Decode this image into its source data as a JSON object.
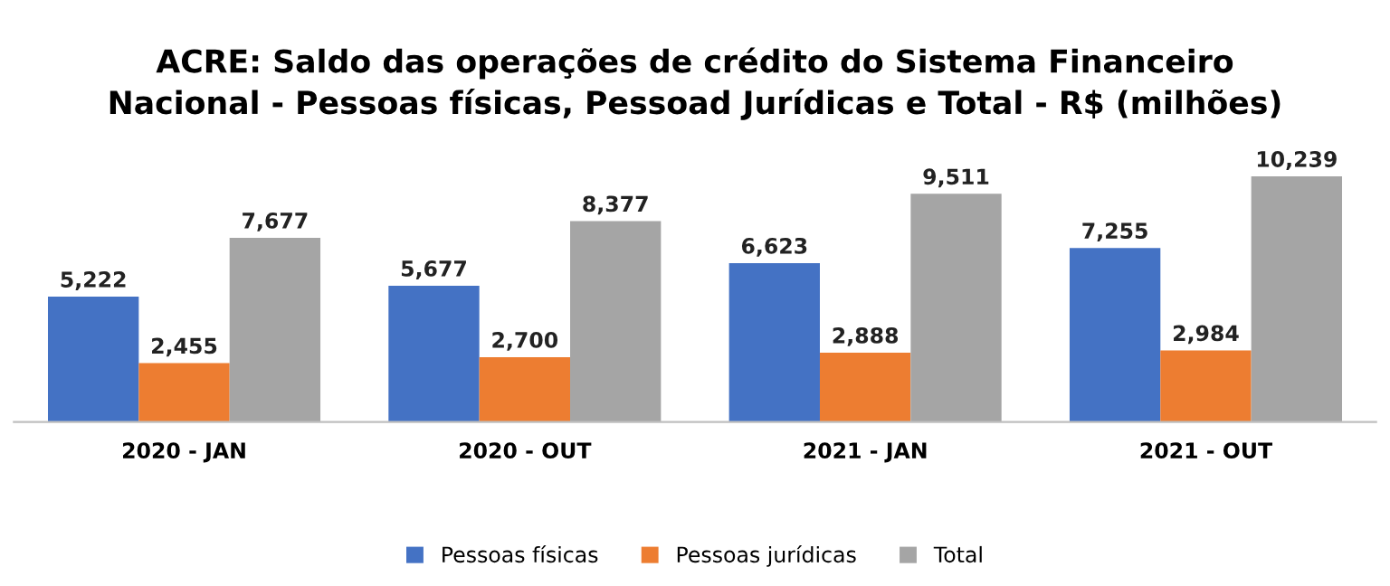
{
  "chart_data": {
    "type": "bar",
    "title": "ACRE: Saldo das operações de crédito do Sistema Financeiro\nNacional - Pessoas físicas, Pessoad Jurídicas e Total - R$ (milhões)",
    "categories": [
      "2020 - JAN",
      "2020 - OUT",
      "2021 - JAN",
      "2021 - OUT"
    ],
    "series": [
      {
        "name": "Pessoas físicas",
        "color": "#4472c4",
        "values": [
          5222,
          5677,
          6623,
          7255
        ],
        "value_labels": [
          "5,222",
          "5,677",
          "6,623",
          "7,255"
        ]
      },
      {
        "name": "Pessoas jurídicas",
        "color": "#ed7d31",
        "values": [
          2455,
          2700,
          2888,
          2984
        ],
        "value_labels": [
          "2,455",
          "2,700",
          "2,888",
          "2,984"
        ]
      },
      {
        "name": "Total",
        "color": "#a5a5a5",
        "values": [
          7677,
          8377,
          9511,
          10239
        ],
        "value_labels": [
          "7,677",
          "8,377",
          "9,511",
          "10,239"
        ]
      }
    ],
    "legend": "bottom"
  }
}
